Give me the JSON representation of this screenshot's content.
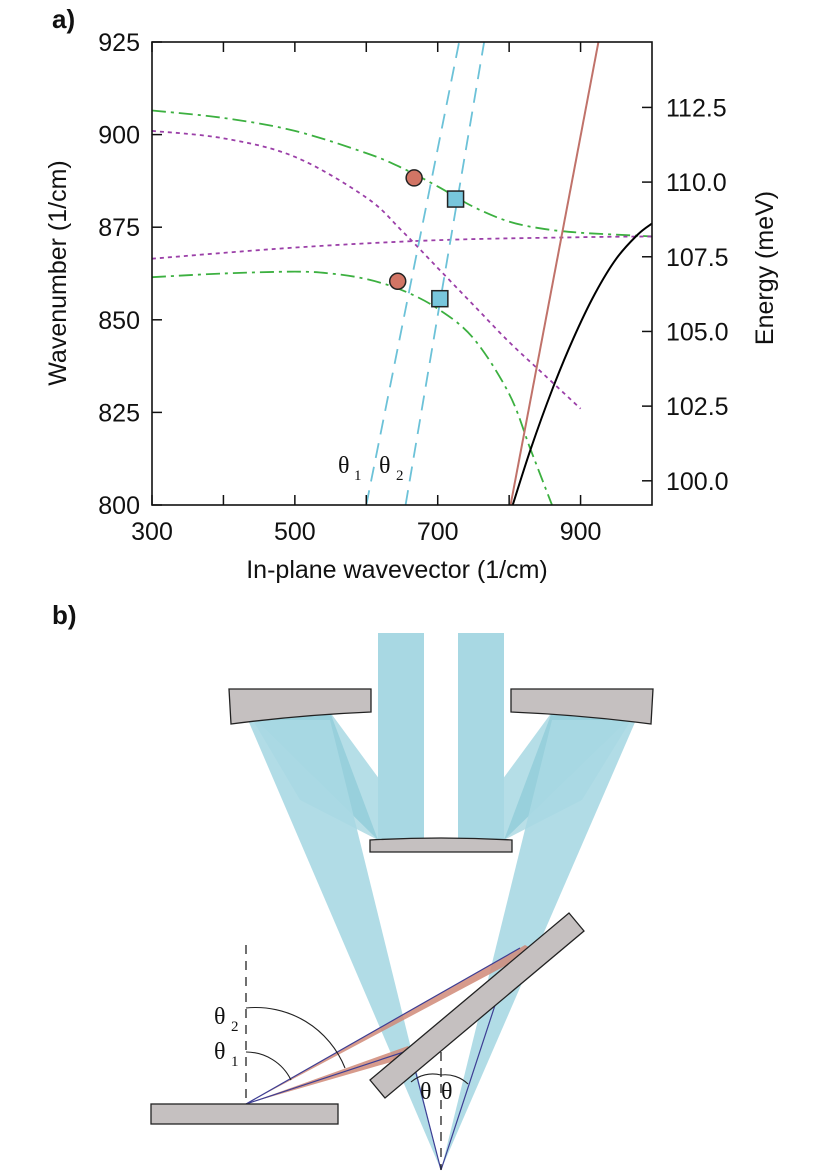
{
  "panel_a": {
    "label": "a)",
    "chart_data": {
      "type": "line",
      "xlabel": "In-plane wavevector (1/cm)",
      "ylabel": "Wavenumber (1/cm)",
      "y2label": "Energy (meV)",
      "xlim": [
        300,
        1000
      ],
      "ylim": [
        800,
        925
      ],
      "y2lim": [
        99.19,
        114.69
      ],
      "x_ticks": [
        "300",
        "500",
        "700",
        "900"
      ],
      "x_tick_values": [
        300,
        500,
        700,
        900
      ],
      "x_minor_ticks": [
        400,
        600,
        800
      ],
      "y_ticks": [
        "800",
        "825",
        "850",
        "875",
        "900",
        "925"
      ],
      "y_tick_values": [
        800,
        825,
        850,
        875,
        900,
        925
      ],
      "y2_ticks": [
        "100.0",
        "102.5",
        "105.0",
        "107.5",
        "110.0",
        "112.5"
      ],
      "y2_tick_values": [
        100.0,
        102.5,
        105.0,
        107.5,
        110.0,
        112.5
      ],
      "series": [
        {
          "style": "dash-dot",
          "color": "#3cb040",
          "x": [
            300,
            400,
            500,
            600,
            650,
            700,
            750,
            800,
            850,
            900,
            950,
            1000
          ],
          "y": [
            906.5,
            904.5,
            901,
            895,
            891,
            886,
            880.5,
            876.5,
            874.5,
            873.5,
            873,
            872.5
          ]
        },
        {
          "style": "dash-dot",
          "color": "#3cb040",
          "x": [
            300,
            400,
            500,
            550,
            600,
            650,
            700,
            750,
            800,
            830,
            860
          ],
          "y": [
            861.5,
            862.5,
            863,
            862.5,
            861,
            858,
            853,
            845,
            830,
            815,
            800
          ]
        },
        {
          "style": "dotted",
          "color": "#9b3fa8",
          "x": [
            300,
            400,
            500,
            600,
            650,
            700,
            750,
            800,
            850,
            900
          ],
          "y": [
            901,
            899,
            894,
            883,
            874,
            864,
            854,
            844,
            835,
            826
          ]
        },
        {
          "style": "dotted",
          "color": "#9b3fa8",
          "x": [
            300,
            500,
            700,
            900,
            1000
          ],
          "y": [
            866.5,
            869.5,
            871.5,
            872.3,
            872.5
          ]
        },
        {
          "style": "dashed",
          "color": "#6cc2d8",
          "x": [
            600,
            730
          ],
          "y": [
            800,
            925
          ]
        },
        {
          "style": "dashed",
          "color": "#6cc2d8",
          "x": [
            655,
            765
          ],
          "y": [
            800,
            925
          ]
        },
        {
          "style": "solid",
          "color": "#c0726a",
          "x": [
            802,
            925
          ],
          "y": [
            800,
            925
          ]
        },
        {
          "style": "solid",
          "color": "#000000",
          "x": [
            805,
            830,
            860,
            890,
            920,
            950,
            980,
            1000
          ],
          "y": [
            800,
            815,
            831,
            845,
            857,
            866.5,
            873,
            876
          ]
        }
      ],
      "markers": [
        {
          "shape": "circle",
          "color": "#d27565",
          "x": [
            667,
            644
          ],
          "y": [
            888.3,
            860.4
          ]
        },
        {
          "shape": "square",
          "color": "#78c6dc",
          "x": [
            725,
            703
          ],
          "y": [
            882.6,
            855.7
          ]
        }
      ],
      "annotations": [
        {
          "main": "θ",
          "sub": "1"
        },
        {
          "main": "θ",
          "sub": "2"
        }
      ]
    }
  },
  "panel_b": {
    "label": "b)",
    "theta2_main": "θ",
    "theta2_sub": "2",
    "theta1_main": "θ",
    "theta1_sub": "1",
    "theta_left": "θ",
    "theta_right": "θ",
    "colors": {
      "beam": "#a8d8e3",
      "beam_dark": "#7fc4d4",
      "mirror": "#c5c0c0",
      "red_beam": "#d08a78",
      "ray": "#3d3e94"
    }
  }
}
